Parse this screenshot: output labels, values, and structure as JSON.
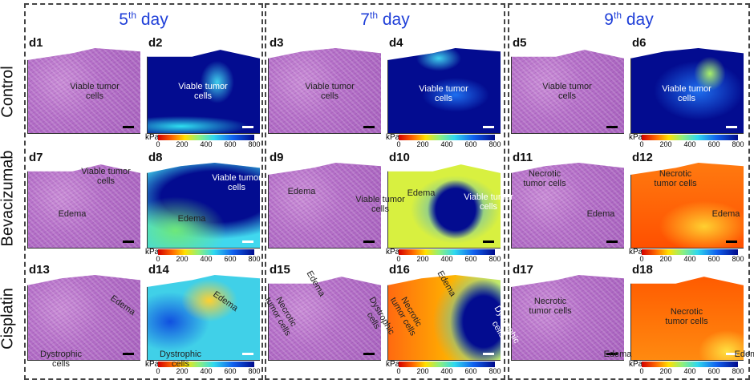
{
  "columns": [
    {
      "day": "5",
      "sup": "th",
      "rest": " day"
    },
    {
      "day": "7",
      "sup": "th",
      "rest": " day"
    },
    {
      "day": "9",
      "sup": "th",
      "rest": " day"
    }
  ],
  "rows": [
    "Control",
    "Bevacizumab",
    "Cisplatin"
  ],
  "colorbar": {
    "unit": "kPa",
    "ticks": [
      "0",
      "200",
      "400",
      "600",
      "800"
    ],
    "colors": [
      "#d40000",
      "#ffe000",
      "#2fd8ee",
      "#000a8c"
    ]
  },
  "panels": [
    {
      "id": "d1",
      "ann": [
        "Viable tumor cells"
      ]
    },
    {
      "id": "d2",
      "ann": [
        "Viable tumor cells"
      ]
    },
    {
      "id": "d3",
      "ann": [
        "Viable tumor cells"
      ]
    },
    {
      "id": "d4",
      "ann": [
        "Viable tumor cells"
      ]
    },
    {
      "id": "d5",
      "ann": [
        "Viable tumor cells"
      ]
    },
    {
      "id": "d6",
      "ann": [
        "Viable tumor cells"
      ]
    },
    {
      "id": "d7",
      "ann": [
        "Viable tumor cells",
        "Edema"
      ]
    },
    {
      "id": "d8",
      "ann": [
        "Viable tumor cells",
        "Edema"
      ]
    },
    {
      "id": "d9",
      "ann": [
        "Edema",
        "Viable tumor cells"
      ]
    },
    {
      "id": "d10",
      "ann": [
        "Edema",
        "Viable tumor cells"
      ]
    },
    {
      "id": "d11",
      "ann": [
        "Necrotic tumor cells",
        "Edema"
      ]
    },
    {
      "id": "d12",
      "ann": [
        "Necrotic tumor cells",
        "Edema"
      ]
    },
    {
      "id": "d13",
      "ann": [
        "Edema",
        "Dystrophic cells"
      ]
    },
    {
      "id": "d14",
      "ann": [
        "Edema",
        "Dystrophic cells"
      ]
    },
    {
      "id": "d15",
      "ann": [
        "Edema",
        "Necrotic tumor cells",
        "Dystrophic cells"
      ]
    },
    {
      "id": "d16",
      "ann": [
        "Edema",
        "Necrotic tumor cells",
        "Dystrophic cells"
      ]
    },
    {
      "id": "d17",
      "ann": [
        "Necrotic tumor cells",
        "Edema"
      ]
    },
    {
      "id": "d18",
      "ann": [
        "Necrotic tumor cells",
        "Edema"
      ]
    }
  ]
}
